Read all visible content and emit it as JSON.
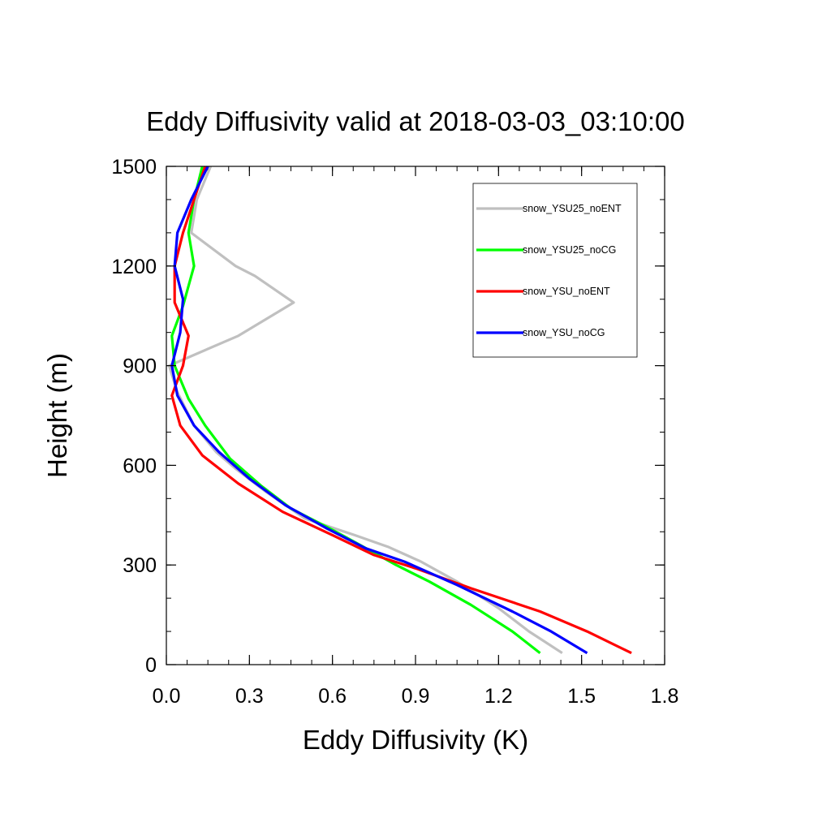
{
  "chart_data": {
    "type": "line",
    "title": "Eddy Diffusivity valid at 2018-03-03_03:10:00",
    "xlabel": "Eddy Diffusivity (K)",
    "ylabel": "Height (m)",
    "xlim": [
      0,
      1.8
    ],
    "ylim": [
      0,
      1500
    ],
    "xticks": [
      "0.0",
      "0.3",
      "0.6",
      "0.9",
      "1.2",
      "1.5",
      "1.8"
    ],
    "yticks": [
      "0",
      "300",
      "600",
      "900",
      "1200",
      "1500"
    ],
    "legend_position": "top-right",
    "series": [
      {
        "name": "snow_YSU25_noENT",
        "color": "#c0c0c0",
        "points": [
          [
            1.43,
            35
          ],
          [
            1.31,
            100
          ],
          [
            1.2,
            170
          ],
          [
            1.05,
            250
          ],
          [
            0.92,
            310
          ],
          [
            0.8,
            355
          ],
          [
            0.68,
            390
          ],
          [
            0.5,
            440
          ],
          [
            0.36,
            520
          ],
          [
            0.25,
            590
          ],
          [
            0.18,
            640
          ],
          [
            0.1,
            720
          ],
          [
            0.04,
            820
          ],
          [
            0.01,
            900
          ],
          [
            0.26,
            990
          ],
          [
            0.46,
            1090
          ],
          [
            0.32,
            1170
          ],
          [
            0.25,
            1200
          ],
          [
            0.09,
            1300
          ],
          [
            0.11,
            1400
          ],
          [
            0.16,
            1500
          ]
        ]
      },
      {
        "name": "snow_YSU25_noCG",
        "color": "#00ff00",
        "points": [
          [
            1.35,
            35
          ],
          [
            1.25,
            100
          ],
          [
            1.1,
            180
          ],
          [
            0.95,
            250
          ],
          [
            0.83,
            300
          ],
          [
            0.7,
            360
          ],
          [
            0.59,
            410
          ],
          [
            0.45,
            470
          ],
          [
            0.34,
            540
          ],
          [
            0.23,
            620
          ],
          [
            0.14,
            720
          ],
          [
            0.08,
            800
          ],
          [
            0.03,
            900
          ],
          [
            0.02,
            990
          ],
          [
            0.06,
            1080
          ],
          [
            0.1,
            1200
          ],
          [
            0.08,
            1300
          ],
          [
            0.1,
            1400
          ],
          [
            0.13,
            1500
          ]
        ]
      },
      {
        "name": "snow_YSU_noENT",
        "color": "#ff0000",
        "points": [
          [
            1.68,
            35
          ],
          [
            1.52,
            100
          ],
          [
            1.35,
            160
          ],
          [
            1.1,
            230
          ],
          [
            0.9,
            290
          ],
          [
            0.75,
            330
          ],
          [
            0.6,
            390
          ],
          [
            0.42,
            460
          ],
          [
            0.26,
            545
          ],
          [
            0.13,
            630
          ],
          [
            0.05,
            720
          ],
          [
            0.02,
            810
          ],
          [
            0.06,
            900
          ],
          [
            0.08,
            990
          ],
          [
            0.03,
            1090
          ],
          [
            0.03,
            1200
          ],
          [
            0.06,
            1300
          ],
          [
            0.1,
            1400
          ],
          [
            0.14,
            1500
          ]
        ]
      },
      {
        "name": "snow_YSU_noCG",
        "color": "#0000ff",
        "points": [
          [
            1.52,
            35
          ],
          [
            1.39,
            100
          ],
          [
            1.25,
            160
          ],
          [
            1.05,
            240
          ],
          [
            0.86,
            310
          ],
          [
            0.72,
            350
          ],
          [
            0.58,
            410
          ],
          [
            0.43,
            480
          ],
          [
            0.3,
            560
          ],
          [
            0.19,
            640
          ],
          [
            0.1,
            720
          ],
          [
            0.04,
            810
          ],
          [
            0.02,
            900
          ],
          [
            0.05,
            1000
          ],
          [
            0.06,
            1100
          ],
          [
            0.03,
            1200
          ],
          [
            0.04,
            1300
          ],
          [
            0.09,
            1400
          ],
          [
            0.15,
            1500
          ]
        ]
      }
    ]
  }
}
